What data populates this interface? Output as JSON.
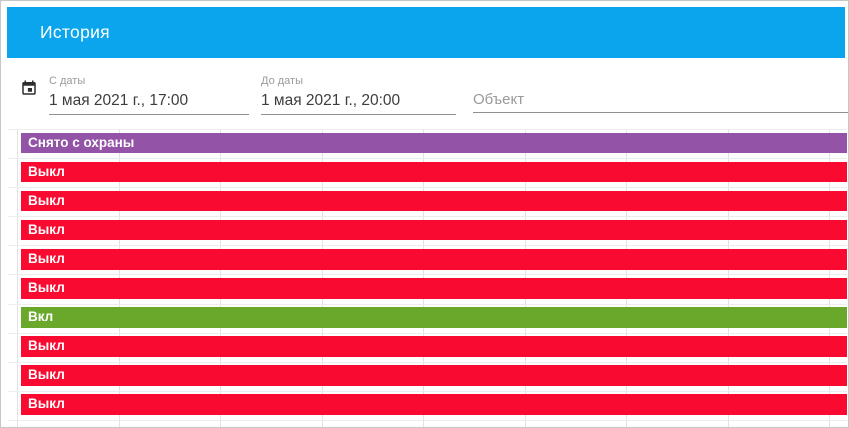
{
  "header": {
    "title": "История"
  },
  "filters": {
    "from_date": {
      "label": "С даты",
      "value": "1 мая 2021 г., 17:00"
    },
    "to_date": {
      "label": "До даты",
      "value": "1 мая 2021 г., 20:00"
    },
    "object": {
      "placeholder": "Объект",
      "value": ""
    }
  },
  "colors": {
    "header_bg": "#0aa5ec",
    "state_off": "#f90a30",
    "state_on": "#69a82b",
    "state_disarmed": "#9353a6",
    "gridline": "#e3e3e3"
  },
  "timeline": {
    "gridlines": 9,
    "range_start": "1 мая 2021 г., 17:00",
    "range_end": "1 мая 2021 г., 20:00",
    "rows": [
      {
        "label": "Снято с охраны",
        "state": "disarmed",
        "color": "#9353a6"
      },
      {
        "label": "Выкл",
        "state": "off",
        "color": "#f90a30"
      },
      {
        "label": "Выкл",
        "state": "off",
        "color": "#f90a30"
      },
      {
        "label": "Выкл",
        "state": "off",
        "color": "#f90a30"
      },
      {
        "label": "Выкл",
        "state": "off",
        "color": "#f90a30"
      },
      {
        "label": "Выкл",
        "state": "off",
        "color": "#f90a30"
      },
      {
        "label": "Вкл",
        "state": "on",
        "color": "#69a82b"
      },
      {
        "label": "Выкл",
        "state": "off",
        "color": "#f90a30"
      },
      {
        "label": "Выкл",
        "state": "off",
        "color": "#f90a30"
      },
      {
        "label": "Выкл",
        "state": "off",
        "color": "#f90a30"
      }
    ]
  }
}
